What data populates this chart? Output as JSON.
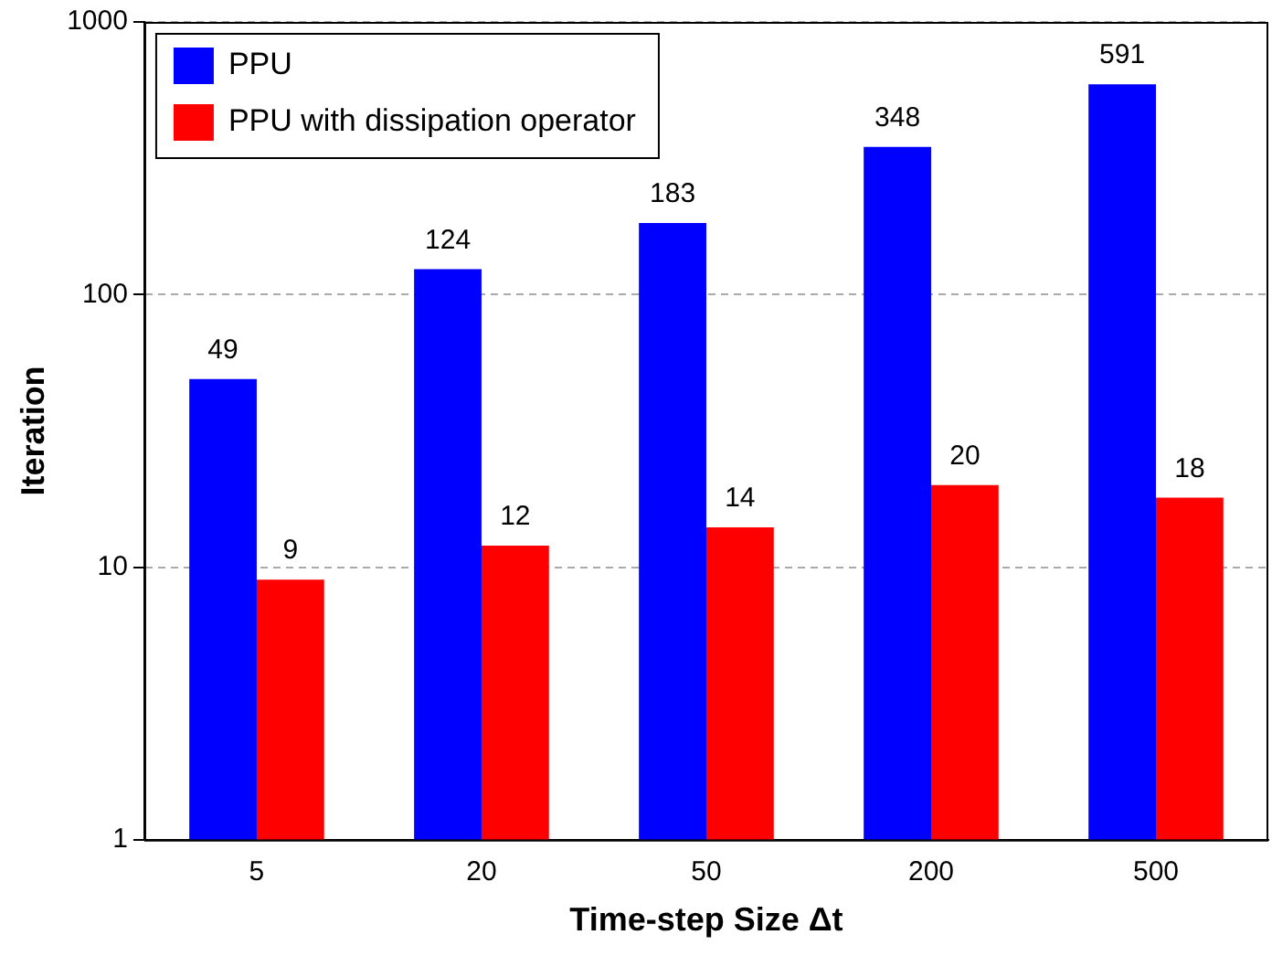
{
  "chart_data": {
    "type": "bar",
    "xlabel": "Time-step Size Δt",
    "ylabel": "Iteration",
    "categories": [
      "5",
      "20",
      "50",
      "200",
      "500"
    ],
    "series": [
      {
        "name": "PPU",
        "color": "#0000ff",
        "values": [
          49,
          124,
          183,
          348,
          591
        ]
      },
      {
        "name": "PPU with dissipation operator",
        "color": "#ff0000",
        "values": [
          9,
          12,
          14,
          20,
          18
        ]
      }
    ],
    "log": true,
    "ylim": [
      1,
      1000
    ],
    "yticks": [
      1,
      10,
      100,
      1000
    ],
    "grid": "y",
    "legend": "top left",
    "data_labels": true
  }
}
